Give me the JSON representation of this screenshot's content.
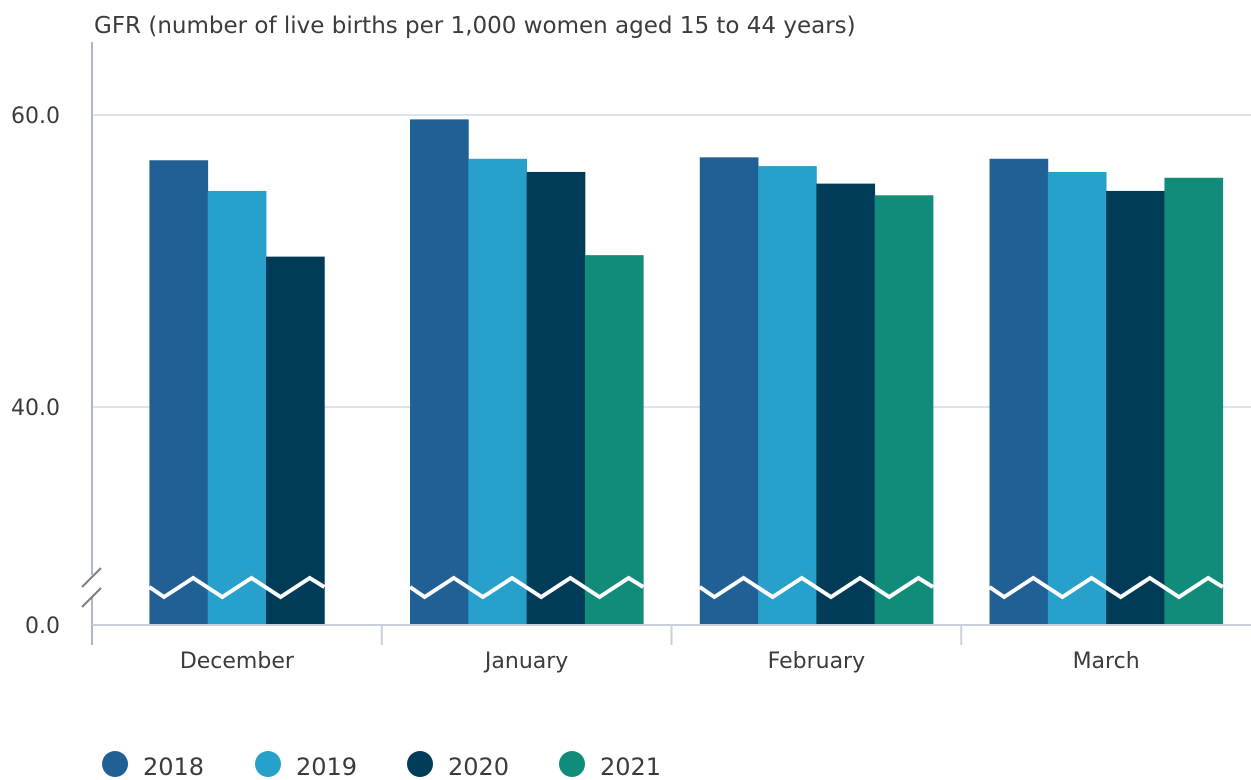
{
  "chart_data": {
    "type": "bar",
    "title": "",
    "ylabel": "GFR (number of live births per 1,000 women aged 15 to 44 years)",
    "xlabel": "",
    "categories": [
      "December",
      "January",
      "February",
      "March"
    ],
    "series": [
      {
        "name": "2018",
        "color": "#206095",
        "values": [
          56.9,
          59.7,
          57.1,
          57.0
        ]
      },
      {
        "name": "2019",
        "color": "#27a0cc",
        "values": [
          54.8,
          57.0,
          56.5,
          56.1
        ]
      },
      {
        "name": "2020",
        "color": "#003c57",
        "values": [
          50.3,
          56.1,
          55.3,
          54.8
        ]
      },
      {
        "name": "2021",
        "color": "#118c7b",
        "values": [
          null,
          50.4,
          54.5,
          55.7
        ]
      }
    ],
    "y_ticks": [
      {
        "value": 0,
        "label": "0.0"
      },
      {
        "value": 40,
        "label": "40.0"
      },
      {
        "value": 60,
        "label": "60.0"
      }
    ],
    "axis_break": {
      "from": 0,
      "to": 40,
      "shown": true
    },
    "ylim": [
      0,
      60
    ],
    "grid": true,
    "legend_position": "bottom-left"
  }
}
